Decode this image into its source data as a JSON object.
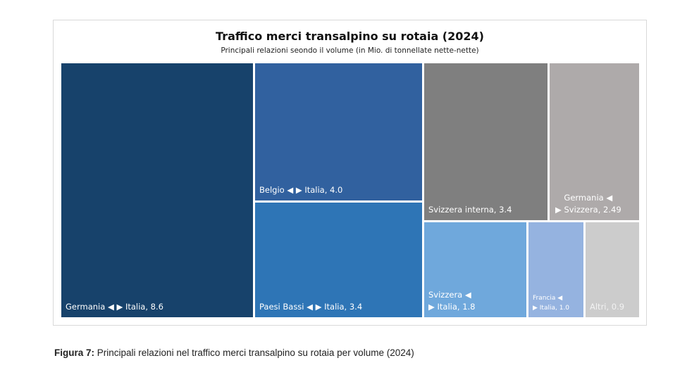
{
  "chart_data": {
    "type": "treemap",
    "title": "Traffico merci transalpino su rotaia (2024)",
    "subtitle": "Principali relazioni seondo il volume (in Mio. di tonnellate nette-nette)",
    "items": [
      {
        "label": "Germania ◀ ▶ Italia, 8.6",
        "name": "Germania ◀ ▶ Italia",
        "value": 8.6,
        "color": "#17426b"
      },
      {
        "label": "Belgio ◀ ▶ Italia, 4.0",
        "name": "Belgio ◀ ▶ Italia",
        "value": 4.0,
        "color": "#31619f"
      },
      {
        "label": "Paesi Bassi ◀ ▶ Italia, 3.4",
        "name": "Paesi Bassi ◀ ▶ Italia",
        "value": 3.4,
        "color": "#2e75b6"
      },
      {
        "label": "Svizzera interna, 3.4",
        "name": "Svizzera interna",
        "value": 3.4,
        "color": "#7f7f7f"
      },
      {
        "label": "Germania ◀\n▶ Svizzera, 2.49",
        "name": "Germania ◀ ▶ Svizzera",
        "value": 2.49,
        "color": "#aeaaaa"
      },
      {
        "label": "Svizzera ◀\n▶ Italia, 1.8",
        "name": "Svizzera ◀ ▶ Italia",
        "value": 1.8,
        "color": "#6fa8dc"
      },
      {
        "label": "Francia ◀\n▶ Italia, 1.0",
        "name": "Francia ◀ ▶ Italia",
        "value": 1.0,
        "color": "#95b3e0"
      },
      {
        "label": "Altri, 0.9",
        "name": "Altri",
        "value": 0.9,
        "color": "#cccccc"
      }
    ]
  },
  "caption": {
    "prefix": "Figura 7:",
    "text": " Principali relazioni nel traffico merci transalpino su rotaia per volume (2024)"
  }
}
